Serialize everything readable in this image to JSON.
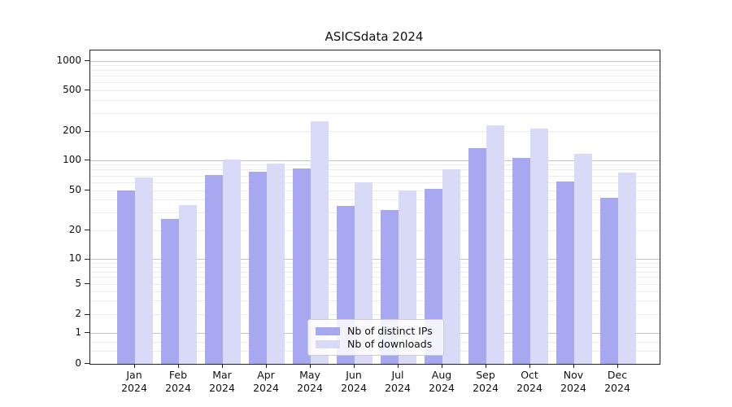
{
  "title": "ASICSdata 2024",
  "chart_data": {
    "type": "bar",
    "title": "ASICSdata 2024",
    "categories": [
      "Jan 2024",
      "Feb 2024",
      "Mar 2024",
      "Apr 2024",
      "May 2024",
      "Jun 2024",
      "Jul 2024",
      "Aug 2024",
      "Sep 2024",
      "Oct 2024",
      "Nov 2024",
      "Dec 2024"
    ],
    "series": [
      {
        "name": "Nb of distinct IPs",
        "color": "#a8a8f0",
        "values": [
          50,
          26,
          72,
          77,
          83,
          35,
          32,
          52,
          133,
          106,
          61,
          42
        ]
      },
      {
        "name": "Nb of downloads",
        "color": "#d9d9f8",
        "values": [
          67,
          36,
          101,
          93,
          250,
          60,
          50,
          81,
          230,
          212,
          117,
          76
        ]
      }
    ],
    "yscale": "symlog",
    "ylim": [
      0,
      1300
    ],
    "yticks": [
      0,
      1,
      2,
      5,
      10,
      20,
      50,
      100,
      200,
      500,
      1000
    ],
    "minor_yticks": [
      0.4,
      0.7,
      3,
      4,
      6,
      7,
      8,
      9,
      30,
      40,
      60,
      70,
      80,
      90,
      300,
      400,
      600,
      700,
      800,
      900
    ],
    "grid": true,
    "legend_position": "lower center"
  },
  "colors": {
    "background": "#ffffff",
    "grid_major": "#c3c3c3",
    "grid_minor": "#ebebeb",
    "axis": "#222222",
    "text": "#111111"
  }
}
